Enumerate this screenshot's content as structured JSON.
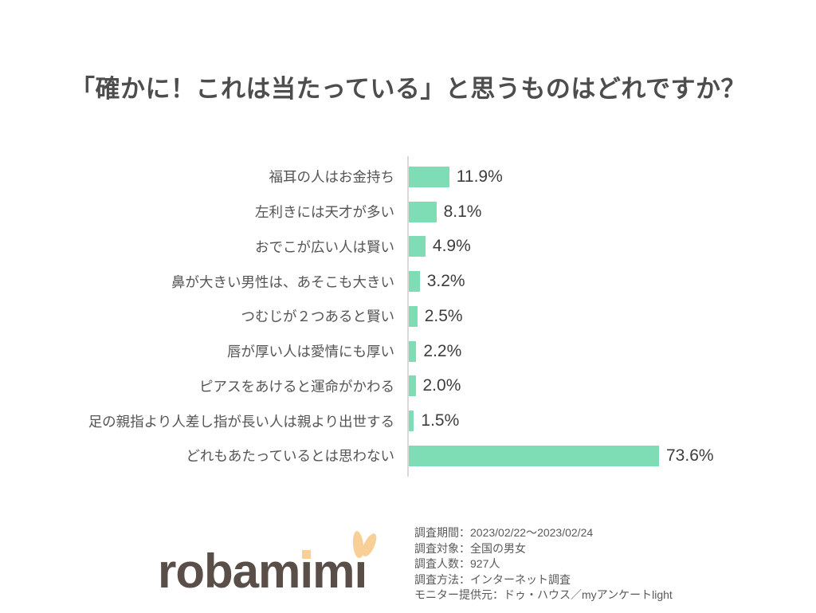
{
  "title": "「確かに！これは当たっている」と思うものはどれですか？",
  "chart_data": {
    "type": "bar",
    "orientation": "horizontal",
    "title": "「確かに！これは当たっている」と思うものはどれですか？",
    "categories": [
      "福耳の人はお金持ち",
      "左利きには天才が多い",
      "おでこが広い人は賢い",
      "鼻が大きい男性は、あそこも大きい",
      "つむじが２つあると賢い",
      "唇が厚い人は愛情にも厚い",
      "ピアスをあけると運命がかわる",
      "足の親指より人差し指が長い人は親より出世する",
      "どれもあたっているとは思わない"
    ],
    "values": [
      11.9,
      8.1,
      4.9,
      3.2,
      2.5,
      2.2,
      2.0,
      1.5,
      73.6
    ],
    "value_labels": [
      "11.9%",
      "8.1%",
      "4.9%",
      "3.2%",
      "2.5%",
      "2.2%",
      "2.0%",
      "1.5%",
      "73.6%"
    ],
    "unit": "%",
    "xlim": [
      0,
      80
    ],
    "grid": false,
    "legend": false,
    "bar_color": "#7eddb4",
    "axis_line_color": "#d9d9d9"
  },
  "footer": {
    "logo": {
      "text": "robamimi",
      "text_color": "#5a4e49",
      "accent_color": "#f8cf97"
    },
    "source_lines": [
      "調査期間：2023/02/22～2023/02/24",
      "調査対象：全国の男女",
      "調査人数：927人",
      "調査方法：インターネット調査",
      "モニター提供元：ドゥ・ハウス／myアンケートlight"
    ]
  }
}
